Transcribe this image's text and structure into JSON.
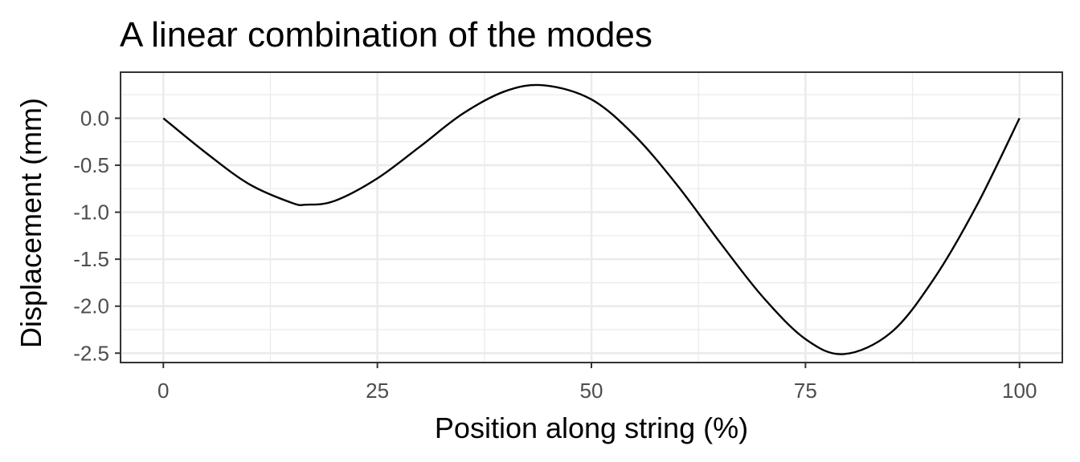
{
  "chart_data": {
    "type": "line",
    "title": "A linear combination of the modes",
    "xlabel": "Position along string (%)",
    "ylabel": "Displacement (mm)",
    "xlim": [
      -5,
      105
    ],
    "ylim": [
      -2.6,
      0.49
    ],
    "x_ticks": [
      0,
      25,
      50,
      75,
      100
    ],
    "x_tick_labels": [
      "0",
      "25",
      "50",
      "75",
      "100"
    ],
    "x_minor_ticks": [
      12.5,
      37.5,
      62.5,
      87.5
    ],
    "y_ticks": [
      0.0,
      -0.5,
      -1.0,
      -1.5,
      -2.0,
      -2.5
    ],
    "y_tick_labels": [
      "0.0",
      "-0.5",
      "-1.0",
      "-1.5",
      "-2.0",
      "-2.5"
    ],
    "y_minor_ticks": [
      0.25,
      -0.25,
      -0.75,
      -1.25,
      -1.75,
      -2.25
    ],
    "grid": true,
    "theme": "bw",
    "line_color": "#000000",
    "series": [
      {
        "x": [
          0,
          5,
          10,
          15,
          16.7,
          20,
          25,
          30,
          35,
          40,
          44.5,
          50,
          55,
          60,
          65,
          70,
          75,
          79.5,
          85,
          90,
          95,
          100
        ],
        "values": [
          0,
          -0.37,
          -0.7,
          -0.9,
          -0.92,
          -0.88,
          -0.64,
          -0.3,
          0.05,
          0.29,
          0.35,
          0.2,
          -0.18,
          -0.71,
          -1.32,
          -1.9,
          -2.35,
          -2.51,
          -2.28,
          -1.71,
          -0.93,
          0
        ]
      }
    ]
  }
}
